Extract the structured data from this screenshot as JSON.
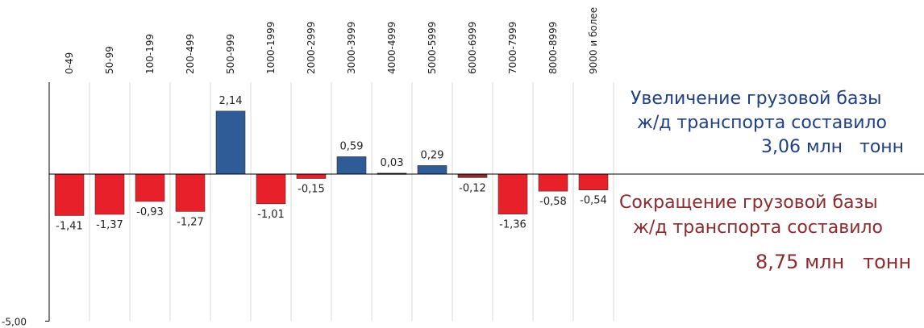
{
  "chart_data": {
    "type": "bar",
    "categories": [
      "0-49",
      "50-99",
      "100-199",
      "200-499",
      "500-999",
      "1000-1999",
      "2000-2999",
      "3000-3999",
      "4000-4999",
      "5000-5999",
      "6000-6999",
      "7000-7999",
      "8000-8999",
      "9000 и более"
    ],
    "values": [
      -1.41,
      -1.37,
      -0.93,
      -1.27,
      2.14,
      -1.01,
      -0.15,
      0.59,
      0.03,
      0.29,
      -0.12,
      -1.36,
      -0.58,
      -0.54
    ],
    "value_labels": [
      "-1,41",
      "-1,37",
      "-0,93",
      "-1,27",
      "2,14",
      "-1,01",
      "-0,15",
      "0,59",
      "0,03",
      "0,29",
      "-0,12",
      "-1,36",
      "-0,58",
      "-0,54"
    ],
    "bar_colors": [
      "#e8202a",
      "#e8202a",
      "#e8202a",
      "#e8202a",
      "#2f5b96",
      "#e8202a",
      "#e8202a",
      "#2f5b96",
      "#1f1f1f",
      "#2f5b96",
      "#8e2a2e",
      "#e8202a",
      "#e8202a",
      "#e8202a"
    ],
    "ylim": [
      -5,
      4.07
    ],
    "ytick_label": "-5,00",
    "ytick_value": -5,
    "title": "",
    "xlabel": "",
    "ylabel": ""
  },
  "annotations": {
    "increase": [
      "Увеличение грузовой базы",
      "ж/д транспорта составило",
      "3,06 млн   тонн"
    ],
    "decrease": [
      "Сокращение грузовой базы",
      "ж/д транспорта составило",
      "8,75 млн   тонн"
    ]
  },
  "colors": {
    "positive": "#2f5b96",
    "negative": "#e8202a",
    "increase_text": "#1f3f86",
    "decrease_text": "#8e2a2e",
    "grid": "#d9d9d9",
    "axis": "#000000"
  }
}
